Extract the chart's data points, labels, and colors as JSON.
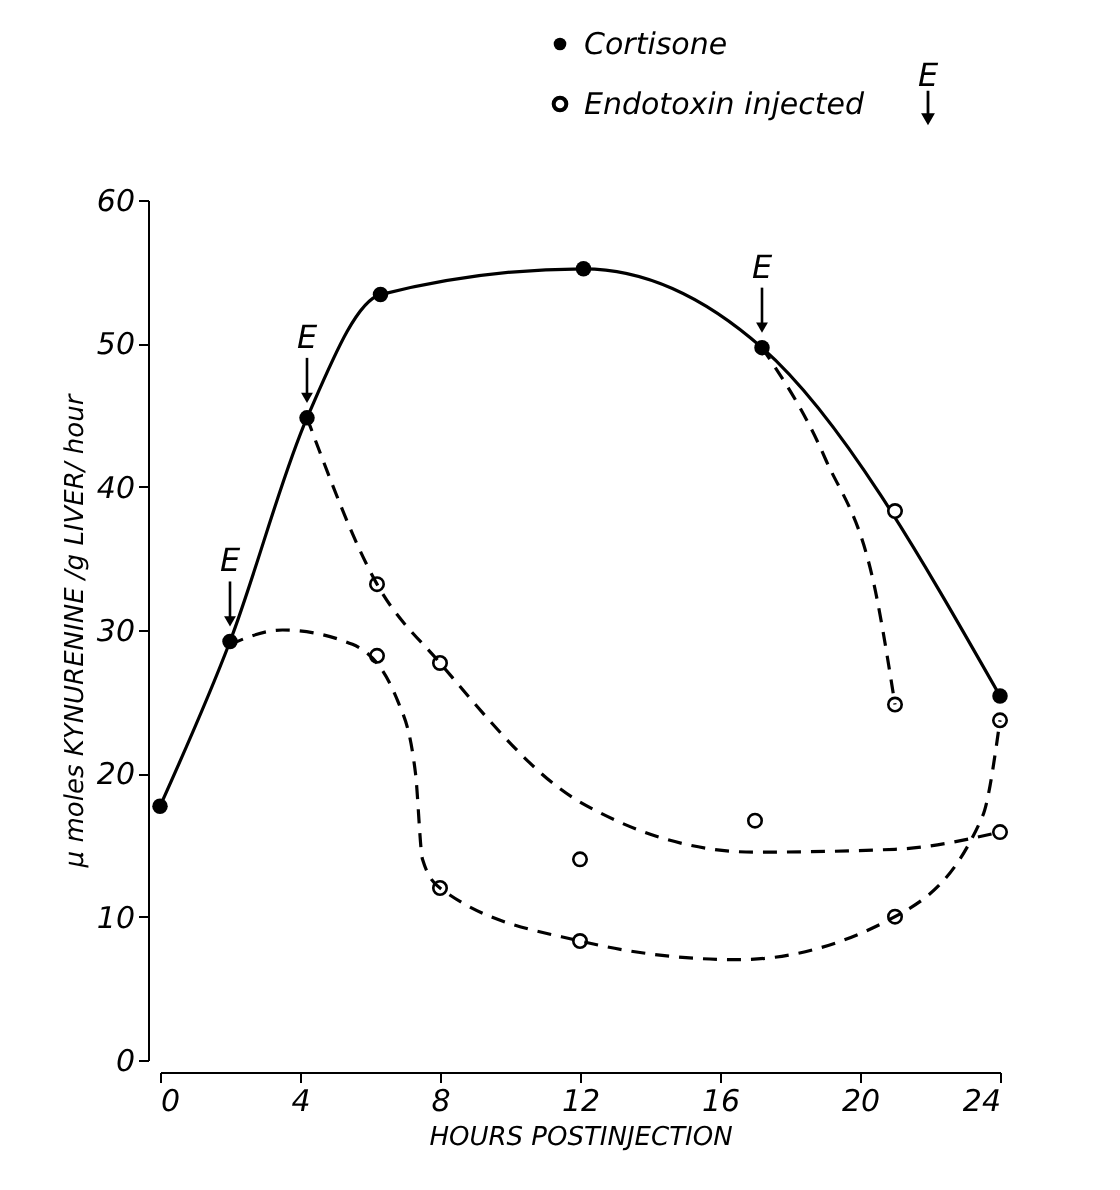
{
  "chart_data": {
    "type": "line",
    "xlabel": "HOURS POSTINJECTION",
    "ylabel": "μ moles KYNURENINE /g LIVER/ hour",
    "xlim": [
      0,
      24
    ],
    "xticks": [
      0,
      4,
      8,
      12,
      16,
      20,
      24
    ],
    "ylim": [
      0,
      60
    ],
    "yticks": [
      0,
      10,
      20,
      30,
      40,
      50,
      60
    ],
    "grid": false,
    "legend": "top",
    "series": [
      {
        "name": "Cortisone",
        "color": "#000000",
        "line_style": "solid",
        "marker": "circle",
        "x": [
          0,
          2,
          4.2,
          6.3,
          12.1,
          17.2,
          24
        ],
        "values": [
          17.7,
          29.2,
          44.8,
          53.4,
          55.2,
          49.7,
          25.4
        ]
      },
      {
        "name": "Endotoxin injected",
        "type": "scatter",
        "color": "#000000",
        "marker": "circle",
        "x": [
          6.2,
          6.2,
          8,
          8,
          12,
          12,
          17,
          21,
          21,
          21,
          24,
          24
        ],
        "values": [
          33.2,
          28.2,
          27.7,
          12,
          14,
          8.3,
          16.7,
          38.3,
          24.8,
          10,
          23.7,
          15.9
        ]
      },
      {
        "color": "#000000",
        "line_style": "dashed",
        "marker": "none",
        "x": [
          2,
          3.5,
          5.5,
          6.8,
          7.3,
          7.5,
          8,
          12,
          16.5,
          21,
          23.5,
          24
        ],
        "values": [
          29,
          30,
          29,
          25,
          20,
          14,
          12,
          8.3,
          7,
          10,
          17,
          23.7
        ]
      },
      {
        "color": "#000000",
        "line_style": "dashed",
        "marker": "none",
        "x": [
          4.2,
          6.2,
          8,
          12,
          17,
          21,
          24
        ],
        "values": [
          44.8,
          33.2,
          27.7,
          18,
          14.5,
          14.7,
          15.9
        ]
      },
      {
        "color": "#000000",
        "line_style": "dashed",
        "marker": "none",
        "x": [
          17.2,
          19,
          20.5,
          21
        ],
        "values": [
          49.7,
          42,
          32,
          24.8
        ]
      }
    ],
    "annotations": [
      {
        "text": "E",
        "x": 2,
        "y": 29.2
      },
      {
        "text": "E",
        "x": 4.2,
        "y": 44.8
      },
      {
        "text": "E",
        "x": 17.2,
        "y": 49.7
      },
      "E"
    ]
  }
}
